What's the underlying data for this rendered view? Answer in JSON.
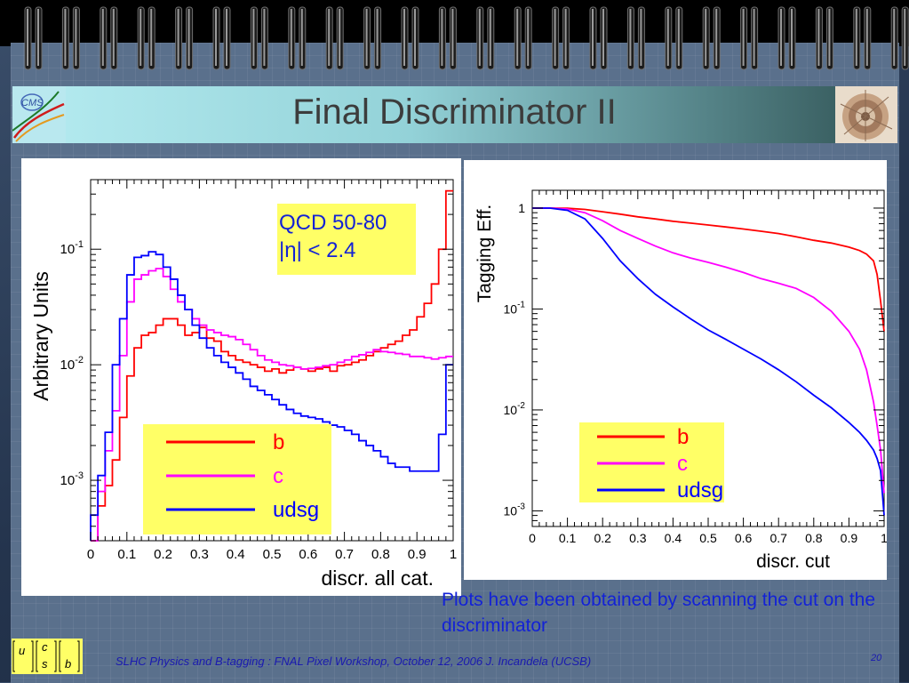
{
  "slide": {
    "title": "Final Discriminator II",
    "note": "Plots have been obtained by scanning the cut on the discriminator",
    "footer": "SLHC Physics and B-tagging : FNAL Pixel Workshop, October 12, 2006   J. Incandela (UCSB)",
    "page_number": "20",
    "quark_labels": [
      "u",
      "c",
      "s",
      "b"
    ]
  },
  "colors": {
    "b": "#ff0000",
    "c": "#ff00ff",
    "udsg": "#0000ff",
    "legend_bg": "#ffff66",
    "text_blue": "#1322d6"
  },
  "chart_data": [
    {
      "type": "histogram",
      "xlabel": "discr. all cat.",
      "ylabel": "Arbitrary Units",
      "xlim": [
        0,
        1
      ],
      "ylim": [
        0.0003,
        0.4
      ],
      "yscale": "log",
      "xticks": [
        "0",
        "0.1",
        "0.2",
        "0.3",
        "0.4",
        "0.5",
        "0.6",
        "0.7",
        "0.8",
        "0.9",
        "1"
      ],
      "yticks": [
        {
          "value": 0.1,
          "label": "10",
          "exp": "-1"
        },
        {
          "value": 0.01,
          "label": "10",
          "exp": "-2"
        },
        {
          "value": 0.001,
          "label": "10",
          "exp": "-3"
        }
      ],
      "annotation": [
        "QCD 50-80",
        "|η| < 2.4"
      ],
      "legend_position": "bottom-left",
      "x_bin_edges": [
        0,
        0.02,
        0.04,
        0.06,
        0.08,
        0.1,
        0.12,
        0.14,
        0.16,
        0.18,
        0.2,
        0.22,
        0.24,
        0.26,
        0.28,
        0.3,
        0.32,
        0.34,
        0.36,
        0.38,
        0.4,
        0.42,
        0.44,
        0.46,
        0.48,
        0.5,
        0.52,
        0.54,
        0.56,
        0.58,
        0.6,
        0.62,
        0.64,
        0.66,
        0.68,
        0.7,
        0.72,
        0.74,
        0.76,
        0.78,
        0.8,
        0.82,
        0.84,
        0.86,
        0.88,
        0.9,
        0.92,
        0.94,
        0.96,
        0.98,
        1
      ],
      "series": [
        {
          "name": "b",
          "color": "#ff0000",
          "values": [
            0.00025,
            0.0006,
            0.0009,
            0.0015,
            0.0035,
            0.008,
            0.014,
            0.018,
            0.019,
            0.022,
            0.025,
            0.025,
            0.022,
            0.018,
            0.019,
            0.021,
            0.017,
            0.016,
            0.013,
            0.012,
            0.011,
            0.0105,
            0.01,
            0.0095,
            0.0088,
            0.0092,
            0.0085,
            0.009,
            0.0095,
            0.0092,
            0.0088,
            0.0092,
            0.0095,
            0.0088,
            0.0098,
            0.01,
            0.0105,
            0.011,
            0.012,
            0.013,
            0.014,
            0.015,
            0.016,
            0.018,
            0.02,
            0.026,
            0.034,
            0.05,
            0.1,
            0.32
          ]
        },
        {
          "name": "c",
          "color": "#ff00ff",
          "values": [
            0.0003,
            0.0008,
            0.0018,
            0.004,
            0.012,
            0.035,
            0.055,
            0.06,
            0.065,
            0.068,
            0.058,
            0.045,
            0.035,
            0.03,
            0.025,
            0.022,
            0.02,
            0.019,
            0.018,
            0.0175,
            0.0165,
            0.015,
            0.0135,
            0.012,
            0.011,
            0.0105,
            0.01,
            0.0098,
            0.0095,
            0.0092,
            0.0093,
            0.0095,
            0.0098,
            0.01,
            0.0105,
            0.011,
            0.0118,
            0.0122,
            0.0128,
            0.0135,
            0.013,
            0.0128,
            0.0125,
            0.0123,
            0.0118,
            0.0118,
            0.0115,
            0.0112,
            0.0115,
            0.0118
          ]
        },
        {
          "name": "udsg",
          "color": "#0000ff",
          "values": [
            0.0005,
            0.0011,
            0.0026,
            0.01,
            0.025,
            0.06,
            0.085,
            0.088,
            0.095,
            0.09,
            0.07,
            0.055,
            0.04,
            0.03,
            0.022,
            0.017,
            0.014,
            0.012,
            0.0105,
            0.0095,
            0.0085,
            0.0075,
            0.0065,
            0.006,
            0.0055,
            0.005,
            0.0045,
            0.0041,
            0.0038,
            0.0036,
            0.0035,
            0.0034,
            0.0032,
            0.003,
            0.0029,
            0.0027,
            0.0025,
            0.0022,
            0.002,
            0.0018,
            0.0016,
            0.0014,
            0.0013,
            0.0013,
            0.0012,
            0.0012,
            0.0012,
            0.0012,
            0.0025,
            0.01
          ]
        }
      ]
    },
    {
      "type": "line",
      "xlabel": "discr. cut",
      "ylabel": "Tagging Eff.",
      "xlim": [
        0,
        1
      ],
      "ylim": [
        0.0007,
        1.5
      ],
      "yscale": "log",
      "xticks": [
        "0",
        "0.1",
        "0.2",
        "0.3",
        "0.4",
        "0.5",
        "0.6",
        "0.7",
        "0.8",
        "0.9",
        "1"
      ],
      "yticks": [
        {
          "value": 1,
          "label": "1",
          "exp": ""
        },
        {
          "value": 0.1,
          "label": "10",
          "exp": "-1"
        },
        {
          "value": 0.01,
          "label": "10",
          "exp": "-2"
        },
        {
          "value": 0.001,
          "label": "10",
          "exp": "-3"
        }
      ],
      "legend_position": "bottom-center",
      "series": [
        {
          "name": "b",
          "color": "#ff0000",
          "x": [
            0,
            0.05,
            0.1,
            0.15,
            0.2,
            0.25,
            0.3,
            0.35,
            0.4,
            0.45,
            0.5,
            0.55,
            0.6,
            0.65,
            0.7,
            0.75,
            0.8,
            0.85,
            0.9,
            0.93,
            0.95,
            0.97,
            0.98,
            0.99,
            1.0
          ],
          "y": [
            1,
            1,
            0.995,
            0.97,
            0.92,
            0.87,
            0.82,
            0.78,
            0.74,
            0.71,
            0.68,
            0.65,
            0.62,
            0.59,
            0.56,
            0.52,
            0.48,
            0.45,
            0.41,
            0.38,
            0.35,
            0.3,
            0.22,
            0.12,
            0.06
          ]
        },
        {
          "name": "c",
          "color": "#ff00ff",
          "x": [
            0,
            0.05,
            0.1,
            0.15,
            0.2,
            0.25,
            0.3,
            0.35,
            0.4,
            0.45,
            0.5,
            0.55,
            0.6,
            0.65,
            0.7,
            0.75,
            0.8,
            0.85,
            0.9,
            0.93,
            0.95,
            0.97,
            0.98,
            0.99,
            1.0
          ],
          "y": [
            1,
            1,
            0.98,
            0.9,
            0.75,
            0.6,
            0.5,
            0.42,
            0.36,
            0.32,
            0.29,
            0.26,
            0.23,
            0.2,
            0.18,
            0.16,
            0.13,
            0.095,
            0.06,
            0.04,
            0.025,
            0.012,
            0.007,
            0.004,
            0.0015
          ]
        },
        {
          "name": "udsg",
          "color": "#0000ff",
          "x": [
            0,
            0.05,
            0.1,
            0.15,
            0.2,
            0.25,
            0.3,
            0.35,
            0.4,
            0.45,
            0.5,
            0.55,
            0.6,
            0.65,
            0.7,
            0.75,
            0.8,
            0.85,
            0.9,
            0.93,
            0.95,
            0.97,
            0.98,
            0.99,
            1.0
          ],
          "y": [
            1,
            1,
            0.95,
            0.78,
            0.5,
            0.3,
            0.2,
            0.14,
            0.105,
            0.08,
            0.062,
            0.05,
            0.04,
            0.032,
            0.025,
            0.019,
            0.014,
            0.0105,
            0.0075,
            0.006,
            0.005,
            0.004,
            0.0033,
            0.0025,
            0.0009
          ]
        }
      ]
    }
  ]
}
